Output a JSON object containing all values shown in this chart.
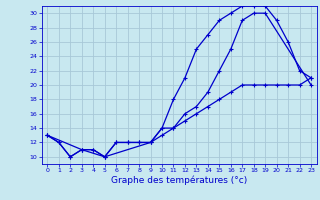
{
  "xlabel": "Graphe des températures (°c)",
  "bg_color": "#c8e8f0",
  "grid_color": "#a8c8d8",
  "line_color": "#0000cc",
  "xlim": [
    -0.5,
    23.5
  ],
  "ylim": [
    9,
    31
  ],
  "xticks": [
    0,
    1,
    2,
    3,
    4,
    5,
    6,
    7,
    8,
    9,
    10,
    11,
    12,
    13,
    14,
    15,
    16,
    17,
    18,
    19,
    20,
    21,
    22,
    23
  ],
  "yticks": [
    10,
    12,
    14,
    16,
    18,
    20,
    22,
    24,
    26,
    28,
    30
  ],
  "line1_x": [
    0,
    1,
    2,
    3,
    4,
    5,
    6,
    7,
    8,
    9,
    10,
    11,
    12,
    13,
    14,
    15,
    16,
    17,
    18,
    19,
    20,
    21,
    22,
    23
  ],
  "line1_y": [
    13,
    12,
    10,
    11,
    11,
    10,
    12,
    12,
    12,
    12,
    14,
    18,
    21,
    25,
    27,
    29,
    30,
    31,
    31,
    31,
    29,
    26,
    22,
    21
  ],
  "line2_x": [
    0,
    1,
    2,
    3,
    4,
    5,
    6,
    7,
    8,
    9,
    10,
    11,
    12,
    13,
    14,
    15,
    16,
    17,
    18,
    19,
    20,
    21,
    22,
    23
  ],
  "line2_y": [
    13,
    12,
    10,
    11,
    11,
    10,
    12,
    12,
    12,
    12,
    13,
    14,
    15,
    16,
    17,
    18,
    19,
    20,
    20,
    20,
    20,
    20,
    20,
    21
  ],
  "line3_x": [
    0,
    3,
    5,
    9,
    10,
    11,
    12,
    13,
    14,
    15,
    16,
    17,
    18,
    19,
    23
  ],
  "line3_y": [
    13,
    11,
    10,
    12,
    14,
    14,
    16,
    17,
    19,
    22,
    25,
    29,
    30,
    30,
    20
  ],
  "xlabel_fontsize": 6.5,
  "tick_fontsize": 4.5
}
